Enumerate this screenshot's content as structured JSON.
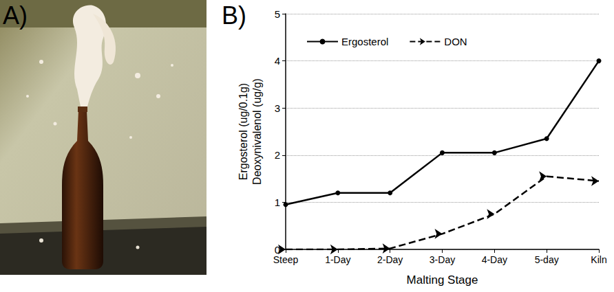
{
  "panel_labels": {
    "A": "A)",
    "B": "B)"
  },
  "chart_data": {
    "type": "line",
    "categories": [
      "Steep",
      "1-Day",
      "2-Day",
      "3-Day",
      "4-Day",
      "5-day",
      "Kiln"
    ],
    "x_label": "Malting Stage",
    "y_label": [
      "Ergosterol (ug/0.1g)",
      "Deoxynivalenol (ug/g)"
    ],
    "series": [
      {
        "name": "Ergosterol",
        "color": "#000000",
        "values": [
          0.95,
          1.2,
          1.2,
          2.05,
          2.05,
          2.35,
          4.0
        ],
        "marker": "circle",
        "line_style": "solid"
      },
      {
        "name": "DON",
        "color": "#000000",
        "values": [
          0,
          0,
          0.02,
          0.33,
          0.75,
          1.55,
          1.45
        ],
        "marker": "arrow",
        "line_style": "dashed"
      }
    ],
    "ylim": [
      0,
      5
    ],
    "yticks": [
      0,
      1,
      2,
      3,
      4,
      5
    ],
    "grid": true,
    "legend": "upper left"
  }
}
